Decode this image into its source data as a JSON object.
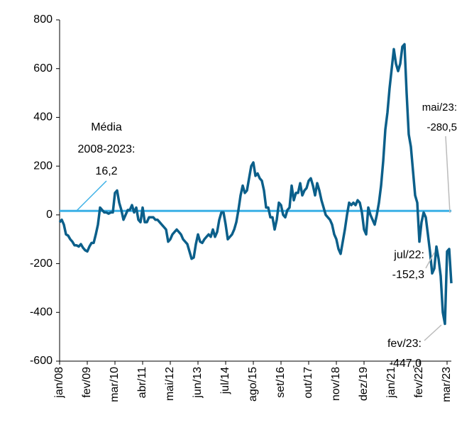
{
  "chart_data": {
    "type": "line",
    "categories": [
      "jan/08",
      null,
      null,
      null,
      null,
      null,
      null,
      null,
      null,
      null,
      null,
      null,
      null,
      "fev/09",
      null,
      null,
      null,
      null,
      null,
      null,
      null,
      null,
      null,
      null,
      null,
      null,
      "mar/10",
      null,
      null,
      null,
      null,
      null,
      null,
      null,
      null,
      null,
      null,
      null,
      null,
      "abr/11",
      null,
      null,
      null,
      null,
      null,
      null,
      null,
      null,
      null,
      null,
      null,
      null,
      "mai/12",
      null,
      null,
      null,
      null,
      null,
      null,
      null,
      null,
      null,
      null,
      null,
      null,
      "jun/13",
      null,
      null,
      null,
      null,
      null,
      null,
      null,
      null,
      null,
      null,
      null,
      null,
      "jul/14",
      null,
      null,
      null,
      null,
      null,
      null,
      null,
      null,
      null,
      null,
      null,
      null,
      "ago/15",
      null,
      null,
      null,
      null,
      null,
      null,
      null,
      null,
      null,
      null,
      null,
      null,
      "set/16",
      null,
      null,
      null,
      null,
      null,
      null,
      null,
      null,
      null,
      null,
      null,
      null,
      "out/17",
      null,
      null,
      null,
      null,
      null,
      null,
      null,
      null,
      null,
      null,
      null,
      null,
      "nov/18",
      null,
      null,
      null,
      null,
      null,
      null,
      null,
      null,
      null,
      null,
      null,
      null,
      "dez/19",
      null,
      null,
      null,
      null,
      null,
      null,
      null,
      null,
      null,
      null,
      null,
      null,
      "jan/21",
      null,
      null,
      null,
      null,
      null,
      null,
      null,
      null,
      null,
      null,
      null,
      null,
      "fev/22",
      null,
      null,
      null,
      null,
      null,
      null,
      null,
      null,
      null,
      null,
      null,
      null,
      "mar/23",
      null,
      null
    ],
    "series": [
      {
        "color": "#0b5f8a",
        "values": [
          -30,
          -20,
          -40,
          -80,
          -85,
          -100,
          -110,
          -125,
          -125,
          -130,
          -120,
          -135,
          -145,
          -150,
          -130,
          -115,
          -115,
          -80,
          -40,
          30,
          20,
          10,
          10,
          5,
          10,
          10,
          90,
          100,
          50,
          20,
          -20,
          0,
          20,
          20,
          40,
          10,
          30,
          -20,
          -30,
          30,
          -30,
          -30,
          -10,
          -10,
          -10,
          -20,
          -20,
          -30,
          -40,
          -50,
          -60,
          -110,
          -100,
          -80,
          -70,
          -60,
          -70,
          -80,
          -100,
          -110,
          -120,
          -150,
          -180,
          -175,
          -120,
          -80,
          -110,
          -115,
          -100,
          -90,
          -80,
          -90,
          -60,
          -90,
          -70,
          -20,
          10,
          10,
          -40,
          -100,
          -90,
          -80,
          -60,
          -30,
          20,
          80,
          120,
          90,
          100,
          150,
          200,
          215,
          160,
          170,
          150,
          140,
          100,
          30,
          30,
          -10,
          -10,
          -60,
          -20,
          50,
          40,
          0,
          -10,
          20,
          30,
          120,
          60,
          90,
          90,
          130,
          80,
          100,
          110,
          140,
          150,
          120,
          80,
          130,
          100,
          60,
          30,
          0,
          -10,
          -20,
          -40,
          -80,
          -100,
          -140,
          -160,
          -110,
          -60,
          0,
          50,
          40,
          50,
          40,
          60,
          50,
          10,
          -60,
          -80,
          30,
          0,
          -20,
          -40,
          0,
          50,
          120,
          220,
          350,
          420,
          520,
          600,
          680,
          620,
          590,
          620,
          690,
          700,
          500,
          330,
          280,
          180,
          80,
          50,
          -110,
          -30,
          10,
          -10,
          -80,
          -152.3,
          -240,
          -220,
          -130,
          -180,
          -250,
          -400,
          -447.0,
          -150,
          -140,
          -280.5
        ]
      }
    ],
    "mean": {
      "value": 16.2,
      "color": "#3bb0e6"
    },
    "annotations": [
      {
        "lines": [
          "Média",
          "2008-2023:",
          "16,2"
        ]
      },
      {
        "lines": [
          "mai/23:",
          "-280,5"
        ]
      },
      {
        "lines": [
          "jul/22:",
          "-152,3"
        ]
      },
      {
        "lines": [
          "fev/23:",
          "-447,0"
        ]
      }
    ],
    "ylim": [
      -600,
      800
    ],
    "yticks": [
      -600,
      -400,
      -200,
      0,
      200,
      400,
      600,
      800
    ]
  }
}
